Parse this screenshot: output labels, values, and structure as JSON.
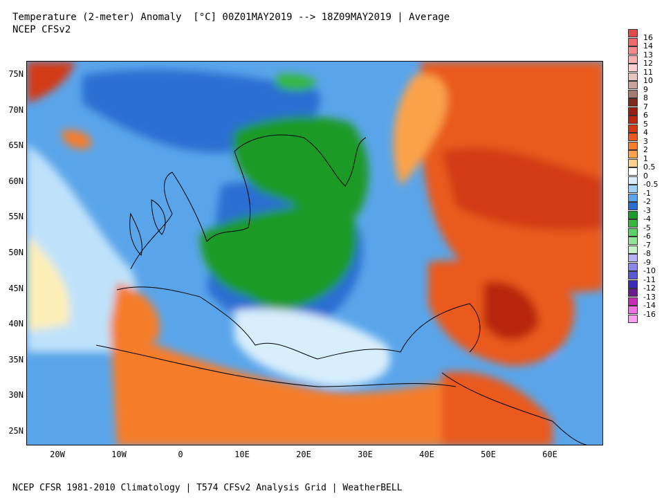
{
  "header": {
    "title_line1": "Temperature (2-meter) Anomaly  [°C] 00Z01MAY2019 --> 18Z09MAY2019 | Average",
    "title_line2": "NCEP CFSv2"
  },
  "footer": {
    "text": "NCEP CFSR 1981-2010 Climatology | T574 CFSv2 Analysis Grid | WeatherBELL"
  },
  "axes": {
    "lat_labels": [
      "75N",
      "70N",
      "65N",
      "60N",
      "55N",
      "50N",
      "45N",
      "40N",
      "35N",
      "30N",
      "25N"
    ],
    "lon_labels": [
      "20W",
      "10W",
      "0",
      "10E",
      "20E",
      "30E",
      "40E",
      "50E",
      "60E"
    ]
  },
  "colorbar": {
    "labels": [
      "16",
      "14",
      "13",
      "12",
      "11",
      "10",
      "9",
      "8",
      "7",
      "6",
      "5",
      "4",
      "3",
      "2",
      "1",
      "0.5",
      "0",
      "-0.5",
      "-1",
      "-2",
      "-3",
      "-4",
      "-5",
      "-6",
      "-7",
      "-8",
      "-9",
      "-10",
      "-11",
      "-12",
      "-13",
      "-14",
      "-16"
    ],
    "colors": [
      "#e34a4a",
      "#ee6a6a",
      "#f58a8a",
      "#f9b0b0",
      "#fcd0d0",
      "#e6c4c0",
      "#c9a39a",
      "#a57a70",
      "#7d2a1a",
      "#9a1f10",
      "#b7280c",
      "#d33a14",
      "#ea5a1e",
      "#f57d2c",
      "#fba24a",
      "#fdd08c",
      "#ffffff",
      "#d8eefc",
      "#9fd0f6",
      "#5aa5ea",
      "#2b6ed2",
      "#1e9a28",
      "#36b83c",
      "#5cd060",
      "#94e294",
      "#c8f0c8",
      "#b4b4f6",
      "#8888ec",
      "#5a5ad8",
      "#3c2ab8",
      "#6a1a8a",
      "#c82ab8",
      "#f070e8",
      "#f8a0f0"
    ]
  }
}
